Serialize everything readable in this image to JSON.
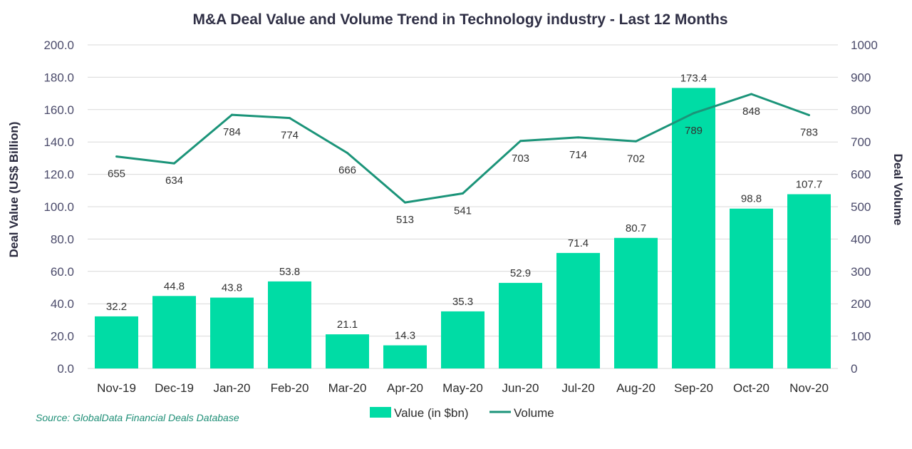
{
  "chart_data": {
    "type": "bar",
    "title": "M&A Deal Value and Volume Trend in Technology industry - Last 12 Months",
    "categories": [
      "Nov-19",
      "Dec-19",
      "Jan-20",
      "Feb-20",
      "Mar-20",
      "Apr-20",
      "May-20",
      "Jun-20",
      "Jul-20",
      "Aug-20",
      "Sep-20",
      "Oct-20",
      "Nov-20"
    ],
    "series": [
      {
        "name": "Value (in $bn)",
        "type": "bar",
        "axis": "left",
        "color": "#00dca5",
        "values": [
          32.2,
          44.8,
          43.8,
          53.8,
          21.1,
          14.3,
          35.3,
          52.9,
          71.4,
          80.7,
          173.4,
          98.8,
          107.7
        ],
        "labels": [
          "32.2",
          "44.8",
          "43.8",
          "53.8",
          "21.1",
          "14.3",
          "35.3",
          "52.9",
          "71.4",
          "80.7",
          "173.4",
          "98.8",
          "107.7"
        ]
      },
      {
        "name": "Volume",
        "type": "line",
        "axis": "right",
        "color": "#1b9479",
        "values": [
          655,
          634,
          784,
          774,
          666,
          513,
          541,
          703,
          714,
          702,
          789,
          848,
          783
        ],
        "labels": [
          "655",
          "634",
          "784",
          "774",
          "666",
          "513",
          "541",
          "703",
          "714",
          "702",
          "789",
          "848",
          "783"
        ]
      }
    ],
    "ylabel": "Deal Value (US$ Billion)",
    "y2label": "Deal Volume",
    "ylim": [
      0,
      200
    ],
    "y2lim": [
      0,
      1000
    ],
    "yticks": [
      "0.0",
      "20.0",
      "40.0",
      "60.0",
      "80.0",
      "100.0",
      "120.0",
      "140.0",
      "160.0",
      "180.0",
      "200.0"
    ],
    "y2ticks": [
      "0",
      "100",
      "200",
      "300",
      "400",
      "500",
      "600",
      "700",
      "800",
      "900",
      "1000"
    ],
    "grid": true,
    "legend": "bottom",
    "source": "Source: GlobalData Financial Deals Database"
  }
}
